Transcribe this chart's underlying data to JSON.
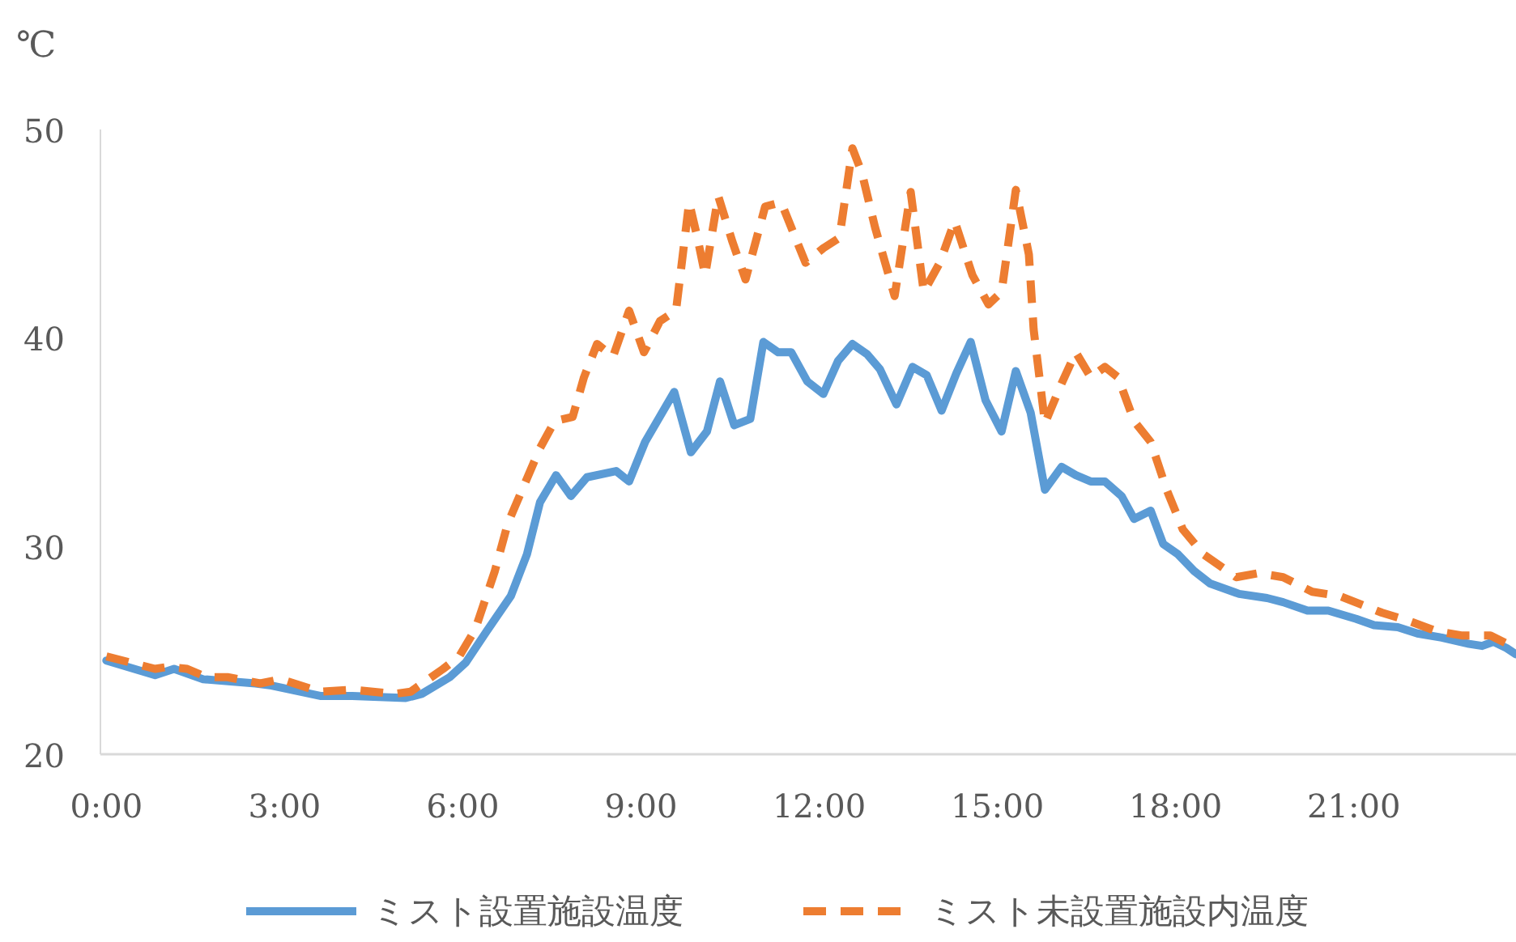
{
  "chart_data": {
    "type": "line",
    "ylabel": "℃",
    "legend": "bottom",
    "grid": false,
    "marker": "none",
    "xlim": [
      -0.1,
      23.73
    ],
    "ylim": [
      20,
      50
    ],
    "yticks": [
      20,
      30,
      40,
      50
    ],
    "xticks": [
      {
        "value": 0,
        "label": "0:00"
      },
      {
        "value": 3,
        "label": "3:00"
      },
      {
        "value": 6,
        "label": "6:00"
      },
      {
        "value": 9,
        "label": "9:00"
      },
      {
        "value": 12,
        "label": "12:00"
      },
      {
        "value": 15,
        "label": "15:00"
      },
      {
        "value": 18,
        "label": "18:00"
      },
      {
        "value": 21,
        "label": "21:00"
      }
    ],
    "series": [
      {
        "name": "ミスト設置施設温度",
        "color": "#5b9bd5",
        "line_style": "solid",
        "x": [
          0,
          0.82,
          1.14,
          1.63,
          2.51,
          2.78,
          3.6,
          4.14,
          5.04,
          5.31,
          5.78,
          6.05,
          6.4,
          6.81,
          7.08,
          7.3,
          7.57,
          7.82,
          8.09,
          8.58,
          8.8,
          9.07,
          9.56,
          9.84,
          10.11,
          10.33,
          10.57,
          10.84,
          11.06,
          11.31,
          11.53,
          11.8,
          12.07,
          12.32,
          12.56,
          12.81,
          13.02,
          13.3,
          13.57,
          13.81,
          14.06,
          14.31,
          14.55,
          14.8,
          15.07,
          15.31,
          15.56,
          15.8,
          16.08,
          16.32,
          16.57,
          16.81,
          17.09,
          17.3,
          17.58,
          17.79,
          18.04,
          18.31,
          18.58,
          19.07,
          19.54,
          19.81,
          20.22,
          20.57,
          21.04,
          21.34,
          21.74,
          22.07,
          22.48,
          22.94,
          23.16,
          23.35,
          23.57,
          23.73
        ],
        "values": [
          24.5,
          23.8,
          24.1,
          23.6,
          23.4,
          23.3,
          22.8,
          22.8,
          22.7,
          22.9,
          23.7,
          24.4,
          25.9,
          27.6,
          29.6,
          32.1,
          33.4,
          32.4,
          33.3,
          33.6,
          33.1,
          35.0,
          37.4,
          34.5,
          35.5,
          37.9,
          35.8,
          36.1,
          39.8,
          39.3,
          39.3,
          37.9,
          37.3,
          38.9,
          39.7,
          39.2,
          38.5,
          36.8,
          38.6,
          38.2,
          36.5,
          38.3,
          39.8,
          37.0,
          35.5,
          38.4,
          36.4,
          32.7,
          33.8,
          33.4,
          33.1,
          33.1,
          32.4,
          31.3,
          31.7,
          30.1,
          29.6,
          28.8,
          28.2,
          27.7,
          27.5,
          27.3,
          26.9,
          26.9,
          26.5,
          26.2,
          26.1,
          25.8,
          25.6,
          25.3,
          25.2,
          25.4,
          25.1,
          24.8
        ]
      },
      {
        "name": "ミスト未設置施設内温度",
        "color": "#ed7d31",
        "line_style": "dashed",
        "x": [
          0,
          0.82,
          1.04,
          1.36,
          1.69,
          2.04,
          2.59,
          2.94,
          3.6,
          4.14,
          4.85,
          5.12,
          5.67,
          5.94,
          6.21,
          6.54,
          6.76,
          7.03,
          7.3,
          7.55,
          7.85,
          8.04,
          8.26,
          8.53,
          8.8,
          9.05,
          9.32,
          9.59,
          9.81,
          9.95,
          10.08,
          10.3,
          10.54,
          10.76,
          11.09,
          11.36,
          11.77,
          12.07,
          12.34,
          12.56,
          12.72,
          12.94,
          13.27,
          13.54,
          13.76,
          14.03,
          14.28,
          14.58,
          14.85,
          15.07,
          15.31,
          15.53,
          15.61,
          15.8,
          16.08,
          16.32,
          16.57,
          16.81,
          17.03,
          17.3,
          17.58,
          17.85,
          18.12,
          18.47,
          19.02,
          19.4,
          19.81,
          20.3,
          20.76,
          21.47,
          21.93,
          22.4,
          22.83,
          23.3,
          23.73
        ],
        "values": [
          24.7,
          24.1,
          24.2,
          24.1,
          23.7,
          23.7,
          23.4,
          23.6,
          23.0,
          23.1,
          22.9,
          23.0,
          24.1,
          24.7,
          26.0,
          28.8,
          31.1,
          32.9,
          34.7,
          36.0,
          36.2,
          38.1,
          39.7,
          39.1,
          41.3,
          39.3,
          40.8,
          41.3,
          46.5,
          44.8,
          43.0,
          46.8,
          44.6,
          42.8,
          46.3,
          46.5,
          43.6,
          44.3,
          44.8,
          49.1,
          47.9,
          45.3,
          42.0,
          47.0,
          42.2,
          43.6,
          45.6,
          43.0,
          41.6,
          42.2,
          47.1,
          44.0,
          40.4,
          35.9,
          37.8,
          39.3,
          38.1,
          38.6,
          38.1,
          36.0,
          35.0,
          32.7,
          30.8,
          29.6,
          28.5,
          28.7,
          28.5,
          27.8,
          27.6,
          26.8,
          26.4,
          25.9,
          25.7,
          25.7,
          25.1
        ]
      }
    ]
  }
}
